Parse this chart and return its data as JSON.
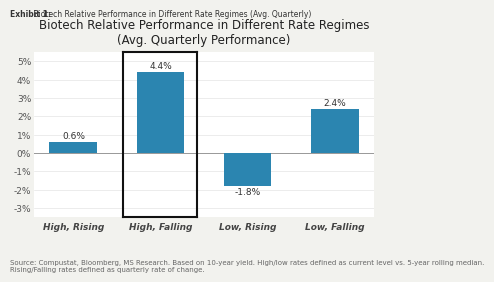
{
  "exhibit_label": "Exhibit 1:",
  "exhibit_desc": " Biotech Relative Performance in Different Rate Regimes (Avg. Quarterly)",
  "title_line1": "Biotech Relative Performance in Different Rate Regimes",
  "title_line2": "(Avg. Quarterly Performance)",
  "categories": [
    "High, Rising",
    "High, Falling",
    "Low, Rising",
    "Low, Falling"
  ],
  "values": [
    0.6,
    4.4,
    -1.8,
    2.4
  ],
  "bar_color": "#2b85b0",
  "highlighted_bar_index": 1,
  "highlight_line_color": "#111111",
  "ylim": [
    -3.5,
    5.5
  ],
  "yticks": [
    -3,
    -2,
    -1,
    0,
    1,
    2,
    3,
    4,
    5
  ],
  "bar_labels": [
    "0.6%",
    "4.4%",
    "-1.8%",
    "2.4%"
  ],
  "source_text": "Source: Compustat, Bloomberg, MS Research. Based on 10-year yield. High/low rates defined as current level vs. 5-year rolling median.\nRising/Falling rates defined as quarterly rate of change.",
  "background_color": "#f2f2ee",
  "plot_bg_color": "#ffffff",
  "bar_width": 0.55,
  "title_fontsize": 8.5,
  "tick_fontsize": 6.5,
  "label_fontsize": 6.5,
  "source_fontsize": 5.0,
  "exhibit_fontsize": 5.5,
  "cat_fontsize": 6.5
}
